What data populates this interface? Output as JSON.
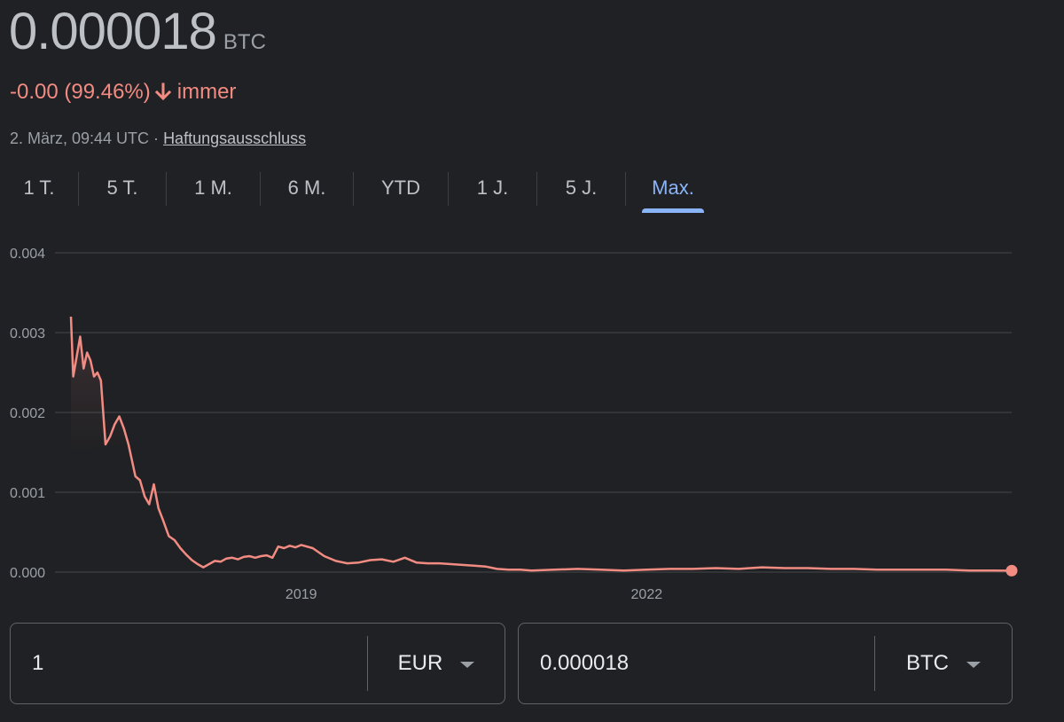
{
  "header": {
    "price": "0.000018",
    "unit": "BTC",
    "change": "-0.00 (99.46%)",
    "period": "immer",
    "timestamp": "2. März, 09:44 UTC · ",
    "disclaimer": "Haftungsausschluss"
  },
  "tabs": [
    {
      "label": "1 T."
    },
    {
      "label": "5 T."
    },
    {
      "label": "1 M."
    },
    {
      "label": "6 M."
    },
    {
      "label": "YTD"
    },
    {
      "label": "1 J."
    },
    {
      "label": "5 J."
    },
    {
      "label": "Max.",
      "active": true
    }
  ],
  "chart_data": {
    "type": "line",
    "ylim": [
      0,
      0.004
    ],
    "y_ticks": [
      "0.004",
      "0.003",
      "0.002",
      "0.001",
      "0.000"
    ],
    "x_ticks": [
      "2019",
      "2022"
    ],
    "x_tick_values": [
      2019.0,
      2022.0
    ],
    "xlim": [
      2017.0,
      2025.17
    ],
    "line_color": "#f28b82",
    "series": [
      {
        "x": [
          2017.0,
          2017.02,
          2017.05,
          2017.08,
          2017.11,
          2017.14,
          2017.17,
          2017.2,
          2017.23,
          2017.26,
          2017.3,
          2017.34,
          2017.38,
          2017.42,
          2017.46,
          2017.5,
          2017.53,
          2017.56,
          2017.6,
          2017.64,
          2017.68,
          2017.72,
          2017.76,
          2017.8,
          2017.85,
          2017.9,
          2017.95,
          2018.0,
          2018.05,
          2018.1,
          2018.15,
          2018.2,
          2018.25,
          2018.3,
          2018.35,
          2018.4,
          2018.45,
          2018.5,
          2018.55,
          2018.6,
          2018.65,
          2018.7,
          2018.75,
          2018.8,
          2018.85,
          2018.9,
          2018.95,
          2019.0,
          2019.1,
          2019.2,
          2019.3,
          2019.4,
          2019.5,
          2019.6,
          2019.7,
          2019.8,
          2019.9,
          2020.0,
          2020.1,
          2020.2,
          2020.3,
          2020.4,
          2020.5,
          2020.6,
          2020.7,
          2020.8,
          2020.9,
          2021.0,
          2021.2,
          2021.4,
          2021.6,
          2021.8,
          2022.0,
          2022.2,
          2022.4,
          2022.6,
          2022.8,
          2023.0,
          2023.2,
          2023.4,
          2023.6,
          2023.8,
          2024.0,
          2024.2,
          2024.4,
          2024.6,
          2024.8,
          2025.0,
          2025.17
        ],
        "y": [
          0.0032,
          0.00245,
          0.0027,
          0.00295,
          0.00255,
          0.00275,
          0.00265,
          0.00245,
          0.0025,
          0.0024,
          0.0016,
          0.0017,
          0.00185,
          0.00195,
          0.0018,
          0.0016,
          0.0014,
          0.0012,
          0.00115,
          0.00095,
          0.00085,
          0.0011,
          0.0008,
          0.00065,
          0.00045,
          0.0004,
          0.0003,
          0.00022,
          0.00015,
          0.0001,
          6e-05,
          0.0001,
          0.00014,
          0.00013,
          0.00017,
          0.00018,
          0.00016,
          0.00019,
          0.0002,
          0.00018,
          0.0002,
          0.00021,
          0.00018,
          0.00032,
          0.0003,
          0.00033,
          0.00031,
          0.00034,
          0.0003,
          0.0002,
          0.00014,
          0.00011,
          0.00012,
          0.00015,
          0.00016,
          0.00013,
          0.00018,
          0.00012,
          0.00011,
          0.00011,
          0.0001,
          9e-05,
          8e-05,
          7e-05,
          4e-05,
          3e-05,
          3e-05,
          2e-05,
          3e-05,
          4e-05,
          3e-05,
          2e-05,
          3e-05,
          4e-05,
          4e-05,
          5e-05,
          4e-05,
          6e-05,
          5e-05,
          5e-05,
          4e-05,
          4e-05,
          3e-05,
          3e-05,
          3e-05,
          3e-05,
          2e-05,
          2e-05,
          1.8e-05
        ]
      }
    ]
  },
  "converter": {
    "left": {
      "value": "1",
      "currency": "EUR"
    },
    "right": {
      "value": "0.000018",
      "currency": "BTC"
    }
  }
}
